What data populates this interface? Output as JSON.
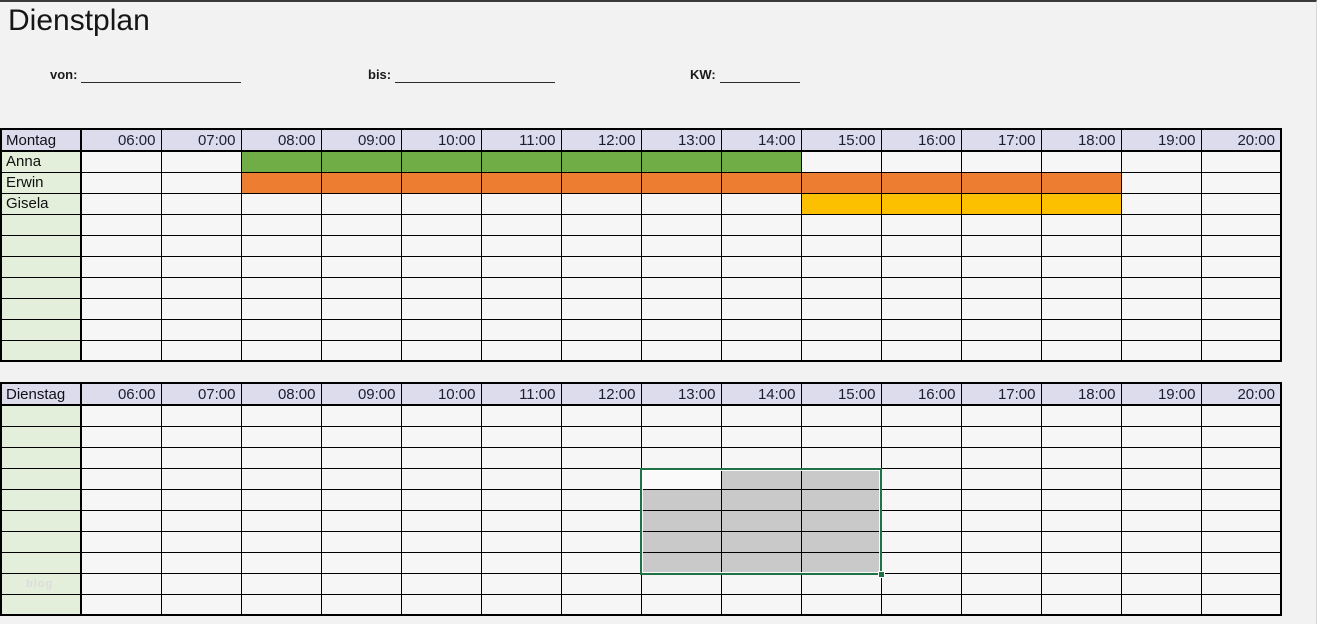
{
  "header": {
    "title": "Dienstplan"
  },
  "fields": {
    "von_label": "von:",
    "bis_label": "bis:",
    "kw_label": "KW:"
  },
  "times": [
    "06:00",
    "07:00",
    "08:00",
    "09:00",
    "10:00",
    "11:00",
    "12:00",
    "13:00",
    "14:00",
    "15:00",
    "16:00",
    "17:00",
    "18:00",
    "19:00",
    "20:00"
  ],
  "tables": [
    {
      "day": "Montag",
      "row_count": 10,
      "rows": [
        {
          "name": "Anna",
          "bar": {
            "from": "08:00",
            "to": "14:00",
            "color": "bar_green"
          }
        },
        {
          "name": "Erwin",
          "bar": {
            "from": "08:00",
            "to": "18:00",
            "color": "bar_orange"
          }
        },
        {
          "name": "Gisela",
          "bar": {
            "from": "15:00",
            "to": "18:00",
            "color": "bar_yellow"
          }
        }
      ]
    },
    {
      "day": "Dienstag",
      "row_count": 10,
      "rows": [],
      "selection": {
        "cols": [
          "13:00",
          "15:00"
        ],
        "rows": [
          4,
          8
        ],
        "active": {
          "col": "13:00",
          "row": 4
        }
      },
      "watermark": {
        "row": 9,
        "text": "blog"
      }
    }
  ],
  "colors": {
    "bar_green": "#70AD47",
    "bar_orange": "#ED7D31",
    "bar_yellow": "#FDC000",
    "header_bg": "#DCDCEC",
    "name_col_bg": "#E3EFDB",
    "cell_bg": "#F6F6F6",
    "page_bg": "#F2F2F2",
    "selection_fill": "#C9C9C9",
    "selection_border": "#1F7246",
    "grid_line": "#000000"
  }
}
